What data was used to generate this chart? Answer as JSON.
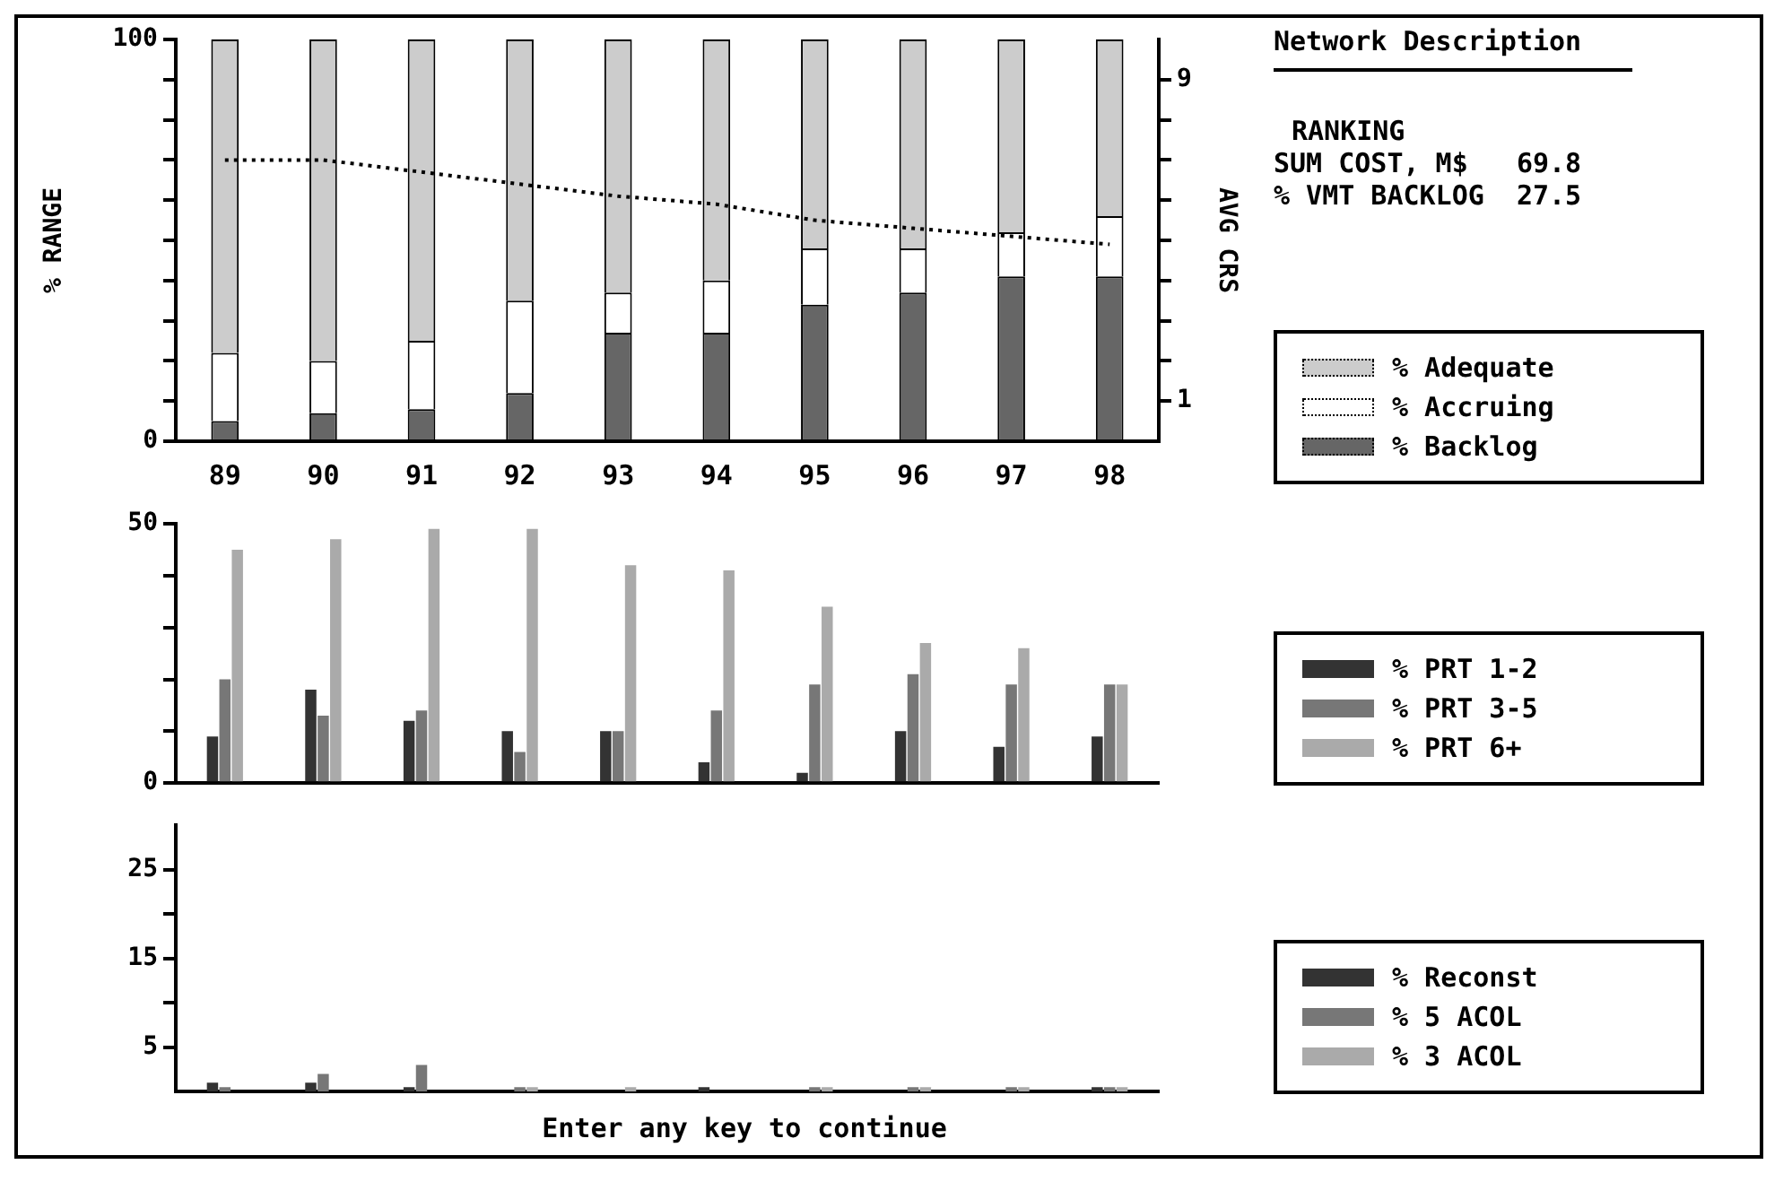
{
  "chart_data": [
    {
      "type": "bar",
      "stacked": true,
      "legend": "right",
      "grid": false,
      "ylabel": "% RANGE",
      "y2label": "AVG CRS",
      "categories": [
        "89",
        "90",
        "91",
        "92",
        "93",
        "94",
        "95",
        "96",
        "97",
        "98"
      ],
      "ylim": [
        0,
        100
      ],
      "yticks": [
        0,
        {
          "value": 10,
          "label": null
        },
        {
          "value": 20,
          "label": null
        },
        {
          "value": 30,
          "label": null
        },
        {
          "value": 40,
          "label": null
        },
        {
          "value": 50,
          "label": null
        },
        {
          "value": 60,
          "label": null
        },
        {
          "value": 70,
          "label": null
        },
        {
          "value": 80,
          "label": null
        },
        {
          "value": 90,
          "label": null
        },
        100
      ],
      "y2lim": [
        0,
        10
      ],
      "y2ticks": [
        1,
        {
          "value": 2,
          "label": null
        },
        {
          "value": 3,
          "label": null
        },
        {
          "value": 4,
          "label": null
        },
        {
          "value": 5,
          "label": null
        },
        {
          "value": 6,
          "label": null
        },
        {
          "value": 7,
          "label": null
        },
        {
          "value": 8,
          "label": null
        },
        9
      ],
      "series": [
        {
          "name": "% Backlog",
          "color": "#666666",
          "values": [
            5,
            7,
            8,
            12,
            27,
            27,
            34,
            37,
            41,
            41
          ]
        },
        {
          "name": "% Accruing",
          "color": "#ffffff",
          "values": [
            17,
            13,
            17,
            23,
            10,
            13,
            14,
            11,
            11,
            15
          ]
        },
        {
          "name": "% Adequate",
          "color": "#cccccc",
          "values": [
            78,
            80,
            75,
            65,
            63,
            60,
            52,
            52,
            48,
            44
          ]
        },
        {
          "type": "line",
          "axis": "y2",
          "color": "#000000",
          "line_style": "dotted",
          "marker": "none",
          "values": [
            7.0,
            7.0,
            6.7,
            6.4,
            6.1,
            5.9,
            5.5,
            5.3,
            5.1,
            4.9
          ]
        }
      ],
      "annotations": [
        "Network Description",
        "RANKING",
        "SUM COST, M$   69.8",
        "% VMT BACKLOG  27.5"
      ]
    },
    {
      "type": "bar",
      "legend": "right",
      "grid": false,
      "tick_labels": "y",
      "categories": [
        "89",
        "90",
        "91",
        "92",
        "93",
        "94",
        "95",
        "96",
        "97",
        "98"
      ],
      "ylim": [
        0,
        50
      ],
      "yticks": [
        0,
        {
          "value": 10,
          "label": null
        },
        {
          "value": 20,
          "label": null
        },
        {
          "value": 30,
          "label": null
        },
        {
          "value": 40,
          "label": null
        },
        50
      ],
      "series": [
        {
          "name": "% PRT 1-2",
          "color": "#333333",
          "values": [
            9,
            18,
            12,
            10,
            10,
            4,
            2,
            10,
            7,
            9
          ]
        },
        {
          "name": "% PRT 3-5",
          "color": "#777777",
          "values": [
            20,
            13,
            14,
            6,
            10,
            14,
            19,
            21,
            19,
            19
          ]
        },
        {
          "name": "% PRT 6+",
          "color": "#aaaaaa",
          "values": [
            45,
            47,
            49,
            49,
            42,
            41,
            34,
            27,
            26,
            19
          ]
        }
      ]
    },
    {
      "type": "bar",
      "legend": "right",
      "grid": false,
      "tick_labels": "y",
      "categories": [
        "89",
        "90",
        "91",
        "92",
        "93",
        "94",
        "95",
        "96",
        "97",
        "98"
      ],
      "ylim": [
        0,
        30
      ],
      "yticks": [
        5,
        {
          "value": 10,
          "label": null
        },
        15,
        {
          "value": 20,
          "label": null
        },
        25
      ],
      "series": [
        {
          "name": "% Reconst",
          "color": "#333333",
          "values": [
            1,
            1,
            0.5,
            0,
            0,
            0.5,
            0,
            0,
            0,
            0.5
          ]
        },
        {
          "name": "% 5 ACOL",
          "color": "#777777",
          "values": [
            0.5,
            2,
            3,
            0.5,
            0,
            0,
            0.5,
            0.5,
            0.5,
            0.5
          ]
        },
        {
          "name": "% 3 ACOL",
          "color": "#aaaaaa",
          "values": [
            0,
            0,
            0,
            0.5,
            0.5,
            0,
            0.5,
            0.5,
            0.5,
            0.5
          ]
        }
      ],
      "annotations": [
        "Enter any key to continue"
      ]
    }
  ]
}
